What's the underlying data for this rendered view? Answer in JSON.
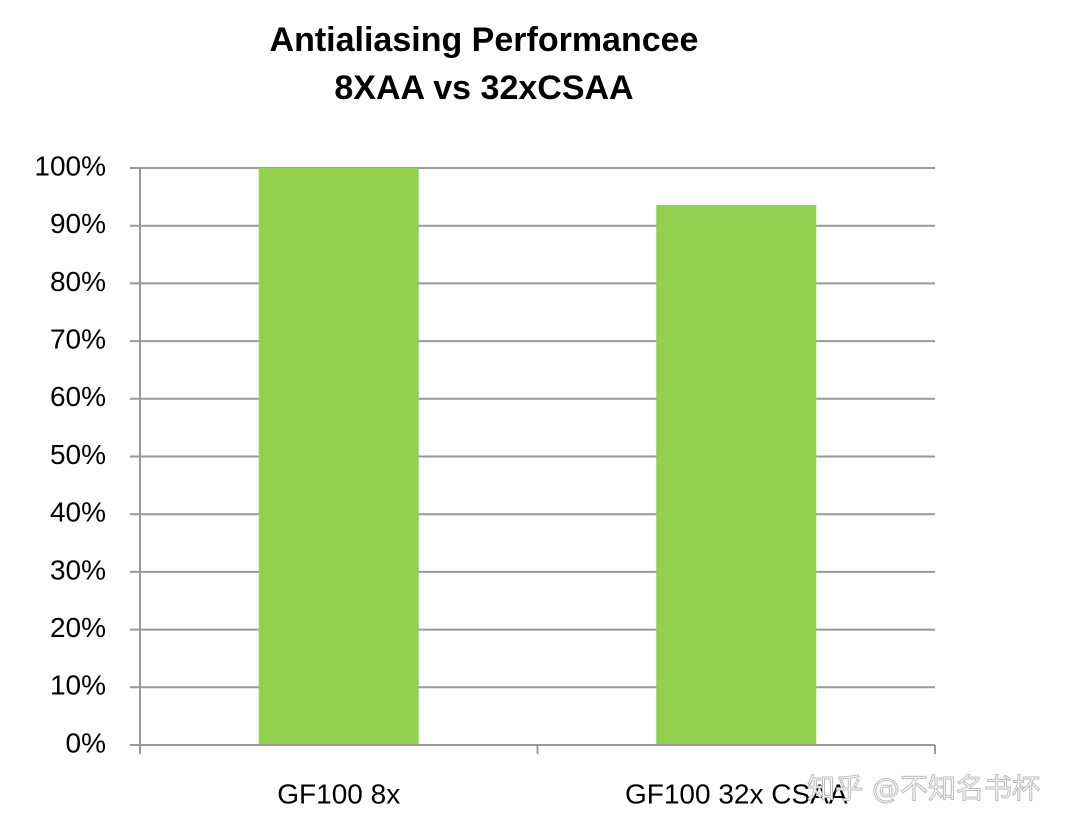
{
  "chart_data": {
    "type": "bar",
    "title": [
      "Antialiasing Performancee",
      "8XAA vs 32xCSAA"
    ],
    "categories": [
      "GF100 8x",
      "GF100 32x CSAA"
    ],
    "values": [
      100,
      93.6
    ],
    "color": "#92d050",
    "ylim": [
      0,
      100
    ],
    "yticks": [
      {
        "value": 0,
        "label": "0%"
      },
      {
        "value": 10,
        "label": "10%"
      },
      {
        "value": 20,
        "label": "20%"
      },
      {
        "value": 30,
        "label": "30%"
      },
      {
        "value": 40,
        "label": "40%"
      },
      {
        "value": 50,
        "label": "50%"
      },
      {
        "value": 60,
        "label": "60%"
      },
      {
        "value": 70,
        "label": "70%"
      },
      {
        "value": 80,
        "label": "80%"
      },
      {
        "value": 90,
        "label": "90%"
      },
      {
        "value": 100,
        "label": "100%"
      }
    ],
    "grid": true,
    "watermark": "知乎 @不知名书杯"
  }
}
